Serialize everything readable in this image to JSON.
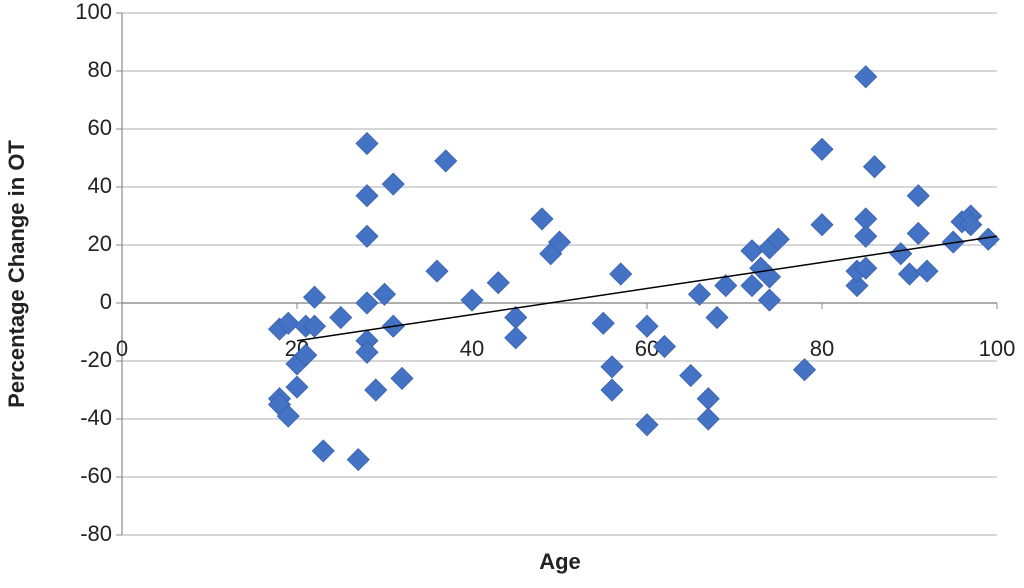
{
  "chart_data": {
    "type": "scatter",
    "x_label": "Age",
    "y_label": "Percentage Change in OT",
    "xlim": [
      0,
      100
    ],
    "xticks": [
      0,
      20,
      40,
      60,
      80,
      100
    ],
    "ylim": [
      -80,
      100
    ],
    "yticks": [
      -80,
      -60,
      -40,
      -20,
      0,
      20,
      40,
      60,
      80,
      100
    ],
    "grid": true,
    "color": "#4472c4",
    "x": [
      18,
      19,
      18,
      18,
      19,
      20,
      20,
      21,
      21,
      22,
      22,
      23,
      25,
      27,
      28,
      28,
      28,
      28,
      28,
      28,
      29,
      30,
      31,
      31,
      32,
      36,
      37,
      40,
      43,
      45,
      45,
      48,
      49,
      50,
      55,
      56,
      56,
      57,
      60,
      60,
      62,
      65,
      66,
      67,
      67,
      68,
      69,
      72,
      72,
      73,
      74,
      74,
      74,
      75,
      78,
      80,
      80,
      84,
      84,
      85,
      85,
      85,
      85,
      86,
      89,
      90,
      91,
      91,
      92,
      95,
      96,
      97,
      97,
      99
    ],
    "y": [
      -9,
      -7,
      -33,
      -35,
      -39,
      -29,
      -21,
      -18,
      -8,
      2,
      -8,
      -51,
      -5,
      -54,
      55,
      37,
      23,
      0,
      -13,
      -17,
      -30,
      3,
      -8,
      41,
      -26,
      11,
      49,
      1,
      7,
      -5,
      -12,
      29,
      17,
      21,
      -7,
      -22,
      -30,
      10,
      -8,
      -42,
      -15,
      -25,
      3,
      -33,
      -40,
      -5,
      6,
      18,
      6,
      12,
      19,
      9,
      1,
      22,
      -23,
      53,
      27,
      6,
      11,
      78,
      29,
      23,
      12,
      47,
      17,
      10,
      37,
      24,
      11,
      21,
      28,
      30,
      27,
      22
    ],
    "trendline": {
      "x": [
        20,
        100
      ],
      "y": [
        -13,
        23
      ],
      "color": "#000000"
    }
  }
}
